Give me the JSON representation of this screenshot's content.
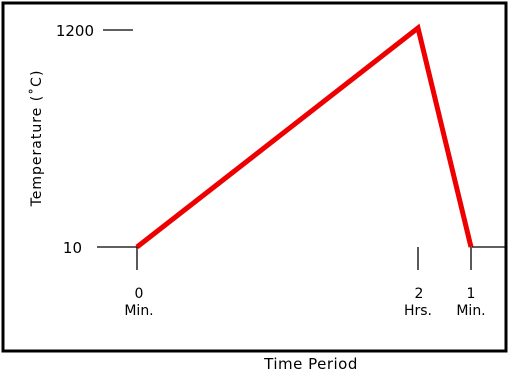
{
  "chart_data": {
    "type": "line",
    "title": "",
    "xlabel": "Time Period",
    "ylabel": "Temperature (˚C)",
    "y_tick_labels": [
      "1200",
      "10"
    ],
    "x_tick_labels": [
      {
        "value": "0",
        "unit": "Min."
      },
      {
        "value": "2",
        "unit": "Hrs."
      },
      {
        "value": "1",
        "unit": "Min."
      }
    ],
    "series": [
      {
        "color": "#ee0000",
        "points": [
          {
            "time": "0 Min.",
            "temperature": 10
          },
          {
            "time": "2 Hrs.",
            "temperature": 1200
          },
          {
            "time": "1 Min.",
            "temperature": 10
          }
        ]
      }
    ],
    "ylim": [
      10,
      1200
    ],
    "grid": false
  }
}
